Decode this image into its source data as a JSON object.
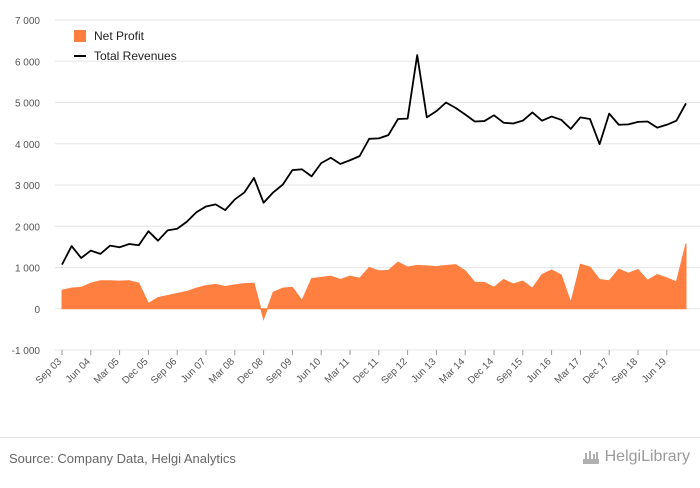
{
  "source": "Source: Company Data, Helgi Analytics",
  "brand": "HelgiLibrary",
  "legend": {
    "net_profit": "Net Profit",
    "total_revenues": "Total Revenues"
  },
  "colors": {
    "net_profit": "#ff7f41",
    "total_revenues": "#000000"
  },
  "chart_data": {
    "type": "line",
    "y_axis": {
      "ylim": [
        -1000,
        7000
      ],
      "ticks": [
        -1000,
        0,
        1000,
        2000,
        3000,
        4000,
        5000,
        6000,
        7000
      ],
      "tick_labels": [
        "-1 000",
        "0",
        "1 000",
        "2 000",
        "3 000",
        "4 000",
        "5 000",
        "6 000",
        "7 000"
      ]
    },
    "x_tick_labels": [
      "Sep 03",
      "Jun 04",
      "Mar 05",
      "Dec 05",
      "Sep 06",
      "Jun 07",
      "Mar 08",
      "Dec 08",
      "Sep 09",
      "Jun 10",
      "Mar 11",
      "Dec 11",
      "Sep 12",
      "Jun 13",
      "Mar 14",
      "Dec 14",
      "Sep 15",
      "Jun 16",
      "Mar 17",
      "Dec 17",
      "Sep 18",
      "Jun 19"
    ],
    "x_start": "Sep 03",
    "frequency": "quarterly",
    "grid": "horizontal",
    "legend_position": "top-left",
    "series": [
      {
        "name": "Net Profit",
        "type": "area",
        "values": [
          450,
          500,
          520,
          620,
          680,
          680,
          670,
          680,
          620,
          130,
          270,
          320,
          370,
          420,
          500,
          560,
          590,
          540,
          580,
          610,
          620,
          -250,
          400,
          500,
          520,
          200,
          730,
          760,
          790,
          710,
          790,
          740,
          1000,
          920,
          930,
          1130,
          1010,
          1050,
          1040,
          1020,
          1050,
          1070,
          920,
          640,
          640,
          520,
          710,
          600,
          670,
          500,
          830,
          940,
          820,
          150,
          1080,
          1010,
          710,
          680,
          960,
          860,
          950,
          690,
          830,
          750,
          650,
          1580
        ]
      },
      {
        "name": "Total Revenues",
        "type": "line",
        "values": [
          1070,
          1520,
          1230,
          1410,
          1330,
          1530,
          1490,
          1570,
          1540,
          1880,
          1650,
          1900,
          1940,
          2110,
          2340,
          2480,
          2530,
          2390,
          2650,
          2820,
          3170,
          2570,
          2820,
          3010,
          3360,
          3380,
          3210,
          3530,
          3660,
          3510,
          3600,
          3700,
          4120,
          4130,
          4210,
          4600,
          4610,
          6150,
          4640,
          4790,
          5000,
          4870,
          4710,
          4540,
          4550,
          4690,
          4510,
          4490,
          4560,
          4760,
          4560,
          4660,
          4580,
          4360,
          4640,
          4600,
          3990,
          4730,
          4460,
          4470,
          4530,
          4540,
          4390,
          4460,
          4560,
          4980
        ]
      }
    ]
  }
}
